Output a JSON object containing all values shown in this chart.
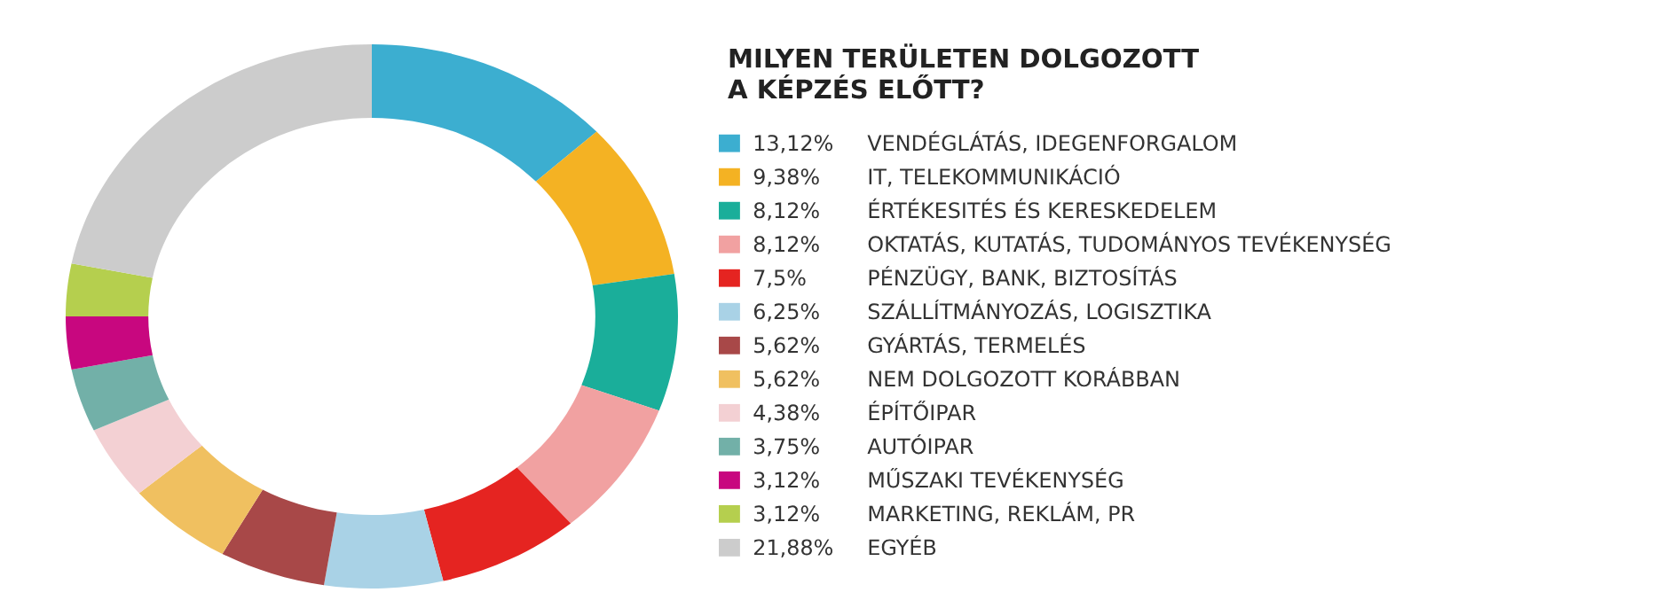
{
  "chart_data": {
    "type": "donut",
    "title": "MILYEN TERÜLETEN DOLGOZOTT\nA KÉPZÉS ELŐTT?",
    "categories": [
      "VENDÉGLÁTÁS, IDEGENFORGALOM",
      "IT, TELEKOMMUNIKÁCIÓ",
      "ÉRTÉKESITÉS ÉS KERESKEDELEM",
      "OKTATÁS, KUTATÁS, TUDOMÁNYOS TEVÉKENYSÉG",
      "PÉNZÜGY, BANK, BIZTOSÍTÁS",
      "SZÁLLÍTMÁNYOZÁS, LOGISZTIKA",
      "GYÁRTÁS, TERMELÉS",
      "NEM DOLGOZOTT KORÁBBAN",
      "ÉPÍTŐIPAR",
      "AUTÓIPAR",
      "MŰSZAKI TEVÉKENYSÉG",
      "MARKETING, REKLÁM, PR",
      "EGYÉB"
    ],
    "values": [
      13.12,
      9.38,
      8.12,
      8.12,
      7.5,
      6.25,
      5.62,
      5.62,
      4.38,
      3.75,
      3.12,
      3.12,
      21.88
    ],
    "value_labels": [
      "13,12%",
      "9,38%",
      "8,12%",
      "8,12%",
      "7,5%",
      "6,25%",
      "5,62%",
      "5,62%",
      "4,38%",
      "3,75%",
      "3,12%",
      "3,12%",
      "21,88%"
    ],
    "colors": [
      "#3caed0",
      "#f4b223",
      "#1aae9a",
      "#f1a1a1",
      "#e52421",
      "#a9d2e6",
      "#a84848",
      "#f0c060",
      "#f3d0d3",
      "#72b0a8",
      "#c8077f",
      "#b5cf4e",
      "#cccccc"
    ],
    "legend": "right"
  }
}
